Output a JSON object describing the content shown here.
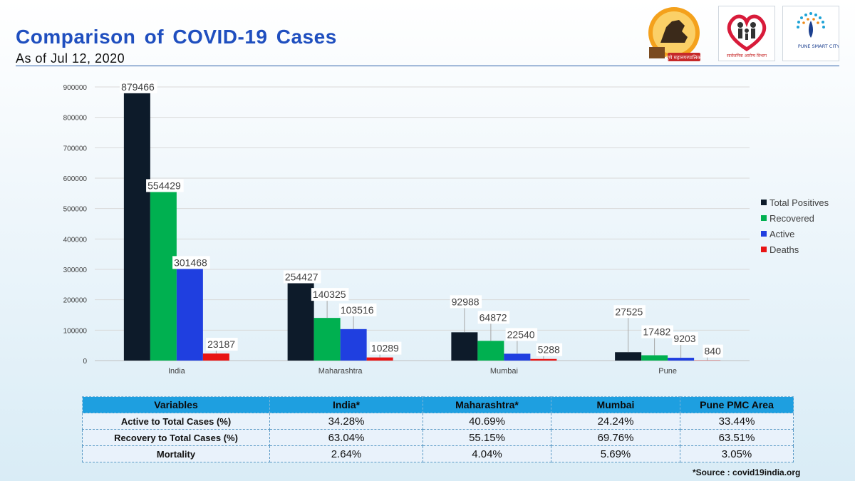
{
  "header": {
    "title": "Comparison of COVID-19 Cases",
    "subtitle": "As of Jul 12, 2020"
  },
  "logos": [
    {
      "name": "pune-municipal-corporation-logo",
      "text": "पुणे महानगरपालिका"
    },
    {
      "name": "health-department-logo",
      "text": "सार्वजनिक आरोग्य विभाग"
    },
    {
      "name": "pune-smart-city-logo",
      "text": "PUNE SMART CITY"
    }
  ],
  "chart_data": {
    "type": "bar",
    "categories": [
      "India",
      "Maharashtra",
      "Mumbai",
      "Pune"
    ],
    "series": [
      {
        "name": "Total Positives",
        "color": "#0d1b2a",
        "values": [
          879466,
          254427,
          92988,
          27525
        ]
      },
      {
        "name": "Recovered",
        "color": "#00b050",
        "values": [
          554429,
          140325,
          64872,
          17482
        ]
      },
      {
        "name": "Active",
        "color": "#1f3fe0",
        "values": [
          301468,
          103516,
          22540,
          9203
        ]
      },
      {
        "name": "Deaths",
        "color": "#e81414",
        "values": [
          23187,
          10289,
          5288,
          840
        ]
      }
    ],
    "yticks": [
      0,
      100000,
      200000,
      300000,
      400000,
      500000,
      600000,
      700000,
      800000,
      900000
    ],
    "ylim": [
      0,
      900000
    ],
    "grid": true,
    "legend": "right"
  },
  "table": {
    "headers": [
      "Variables",
      "India*",
      "Maharashtra*",
      "Mumbai",
      "Pune PMC Area"
    ],
    "rows": [
      [
        "Active to Total Cases (%)",
        "34.28%",
        "40.69%",
        "24.24%",
        "33.44%"
      ],
      [
        "Recovery to Total Cases (%)",
        "63.04%",
        "55.15%",
        "69.76%",
        "63.51%"
      ],
      [
        "Mortality",
        "2.64%",
        "4.04%",
        "5.69%",
        "3.05%"
      ]
    ]
  },
  "footer": {
    "source": "*Source : covid19india.org"
  }
}
